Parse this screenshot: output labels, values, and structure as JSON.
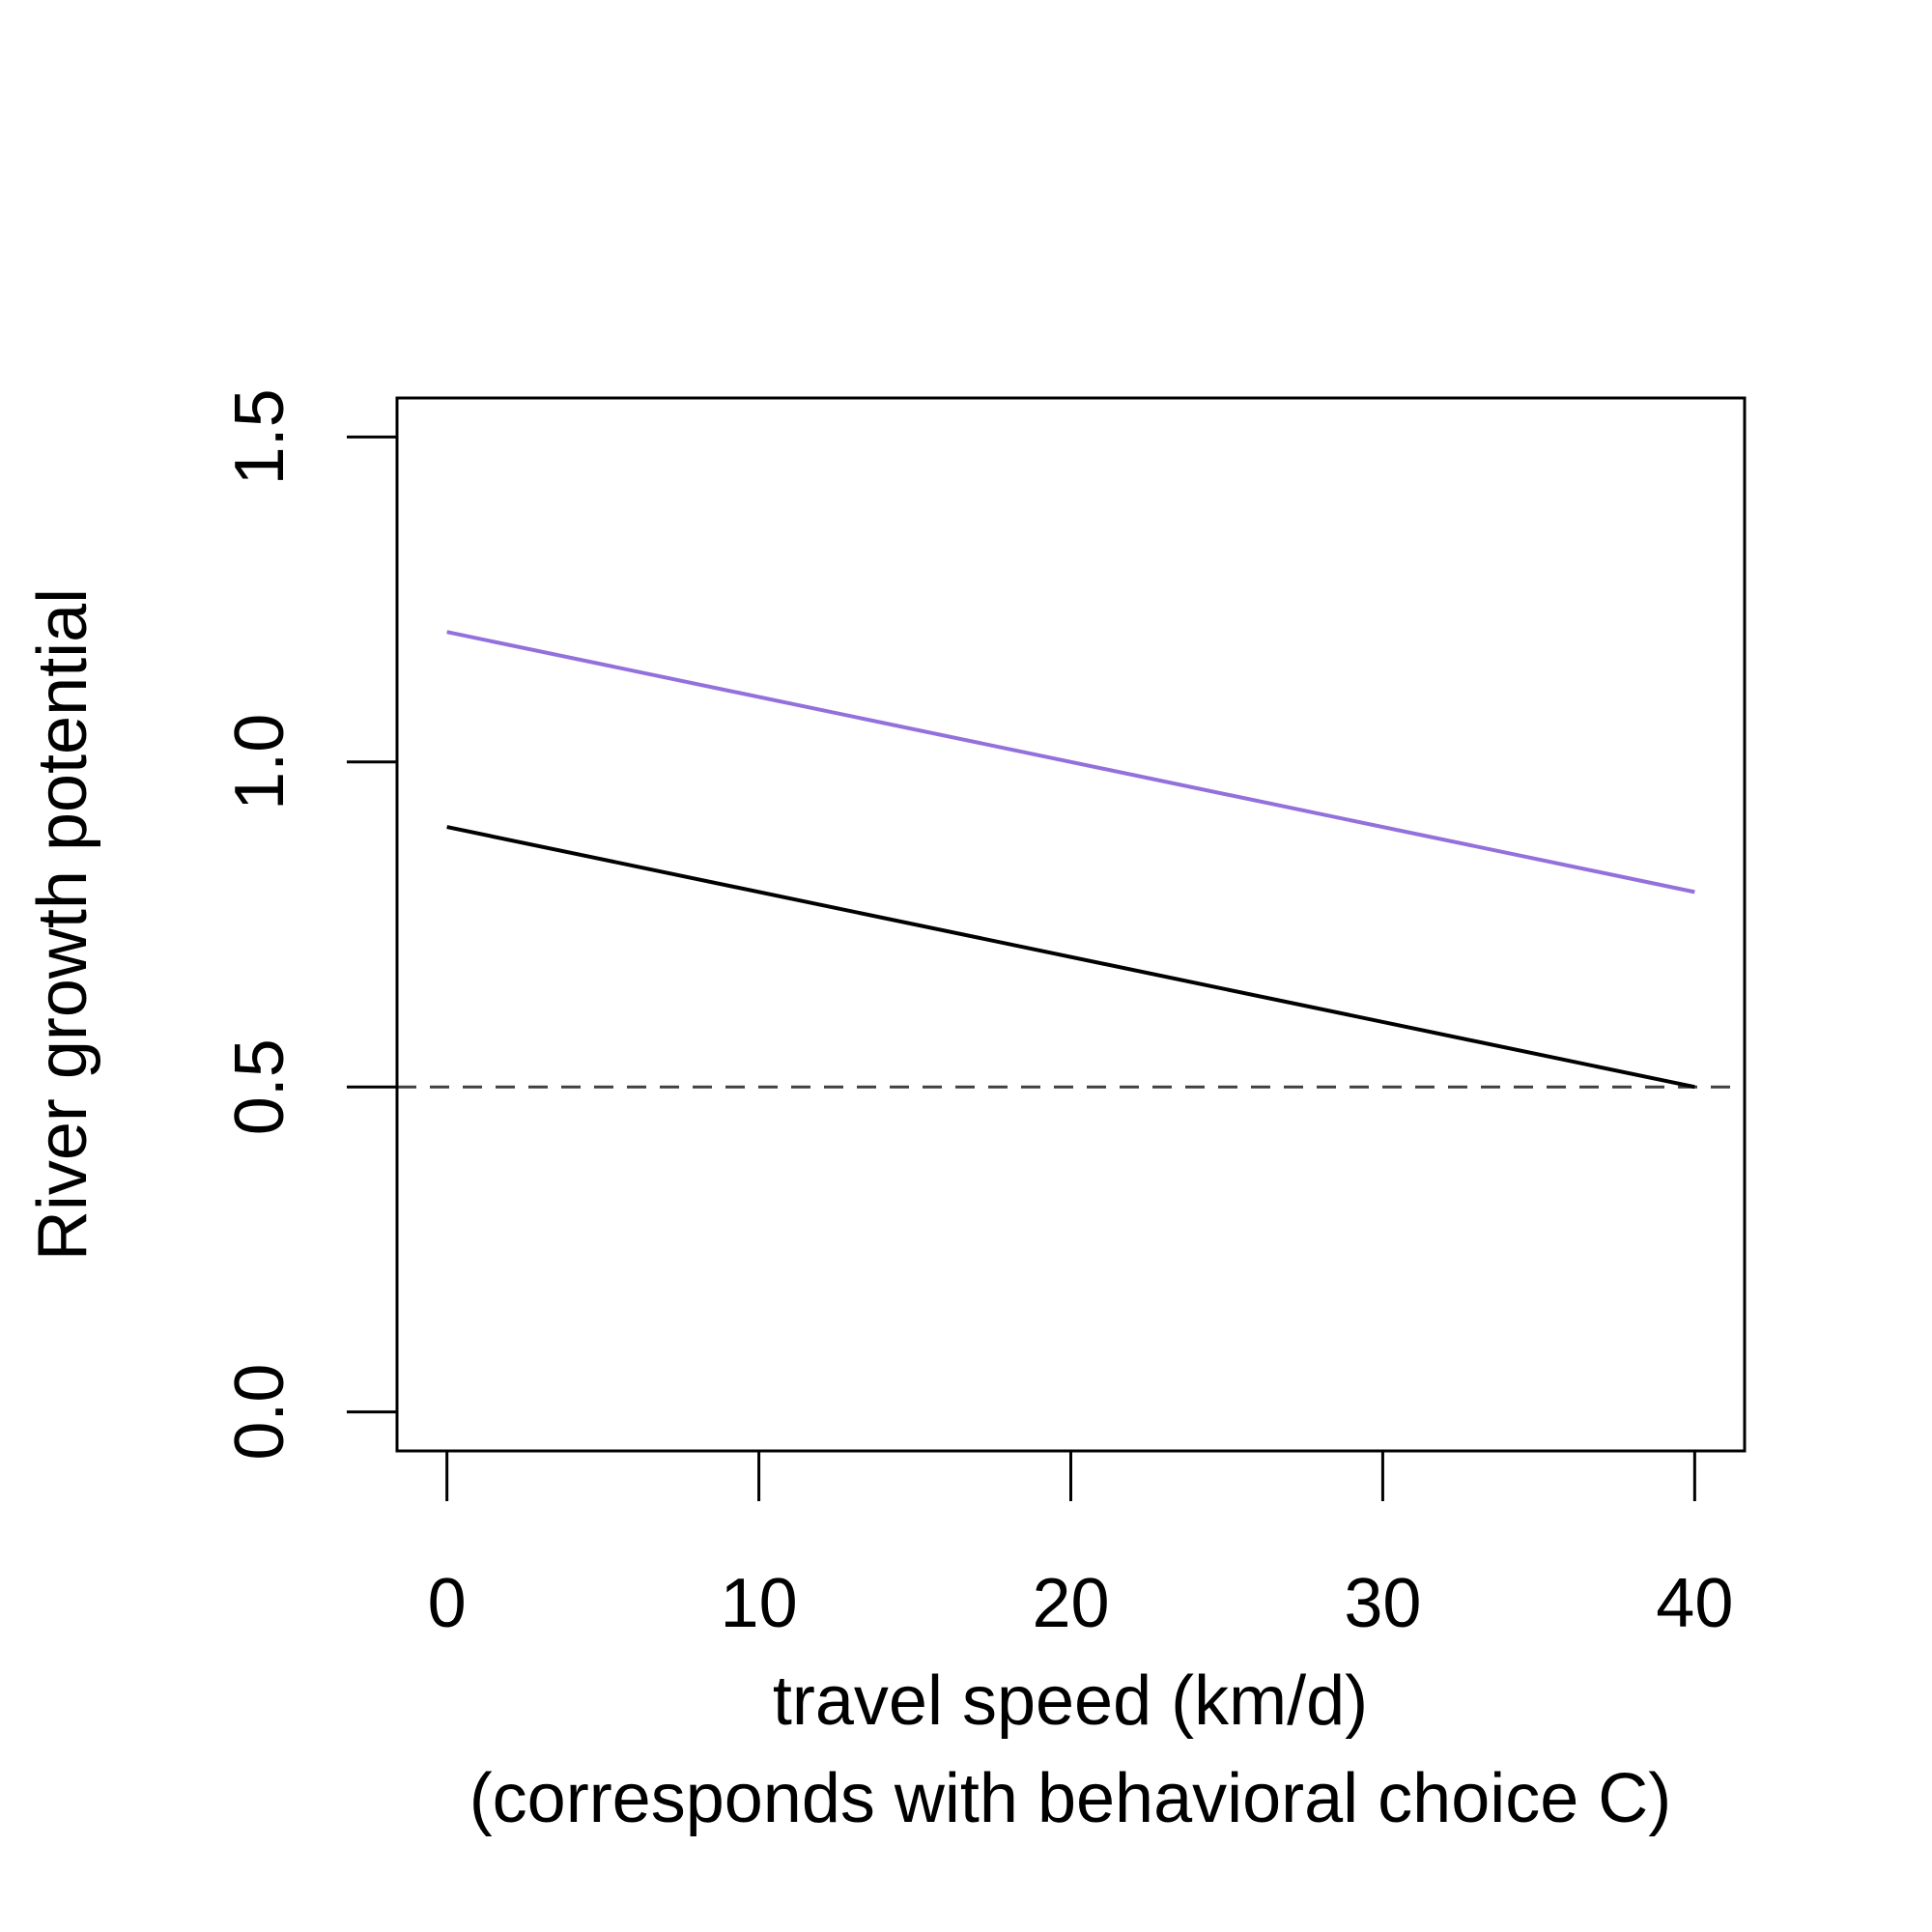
{
  "chart_data": {
    "type": "line",
    "xlabel": "travel speed (km/d)",
    "xlabel_line2": "(corresponds with behavioral choice C)",
    "ylabel": "River growth potential",
    "xlim": [
      -1.6,
      41.6
    ],
    "ylim": [
      -0.06,
      1.56
    ],
    "x_ticks": [
      0,
      10,
      20,
      30,
      40
    ],
    "y_ticks": [
      0.0,
      0.5,
      1.0,
      1.5
    ],
    "x_tick_labels": [
      "0",
      "10",
      "20",
      "30",
      "40"
    ],
    "y_tick_labels": [
      "0.0",
      "0.5",
      "1.0",
      "1.5"
    ],
    "grid": false,
    "legend": "none",
    "series": [
      {
        "color": "#9370DB",
        "x": [
          0,
          40
        ],
        "y": [
          1.2,
          0.8
        ]
      },
      {
        "color": "#000000",
        "x": [
          0,
          40
        ],
        "y": [
          0.9,
          0.5
        ]
      }
    ],
    "reference_line": {
      "y": 0.5,
      "style": "dashed",
      "color": "#404040"
    }
  }
}
